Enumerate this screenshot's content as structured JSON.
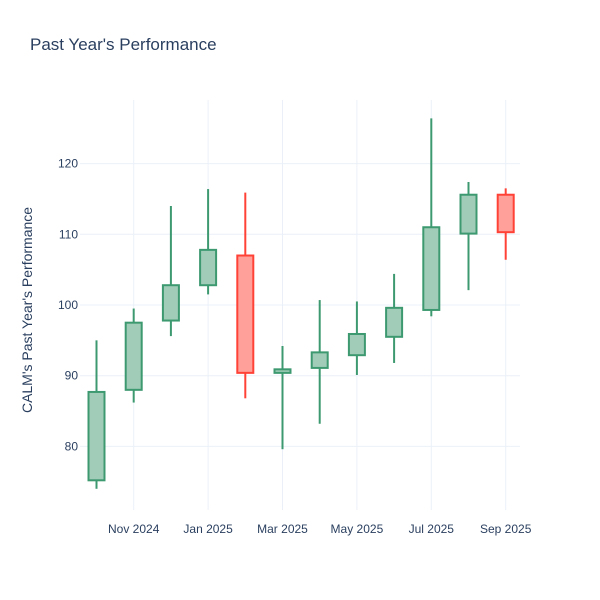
{
  "chart_data": {
    "type": "candlestick",
    "title": "Past Year's Performance",
    "xlabel": "",
    "ylabel": "CALM's Past Year's Performance",
    "ylim": [
      71,
      129
    ],
    "x_ticks": [
      "Nov 2024",
      "Jan 2025",
      "Mar 2025",
      "May 2025",
      "Jul 2025",
      "Sep 2025"
    ],
    "y_ticks": [
      80,
      90,
      100,
      110,
      120
    ],
    "colors": {
      "increasing": "#3d9970",
      "increasing_fill": "#a1ccb8",
      "decreasing": "#ff4136",
      "decreasing_fill": "#ffa09b",
      "grid": "#ebf0f8",
      "text": "#2a3f5f"
    },
    "candles": [
      {
        "period": "Oct 2024",
        "open": 75.2,
        "high": 95.0,
        "low": 74.0,
        "close": 87.7
      },
      {
        "period": "Nov 2024",
        "open": 88.0,
        "high": 99.5,
        "low": 86.2,
        "close": 97.5
      },
      {
        "period": "Dec 2024",
        "open": 97.8,
        "high": 114.0,
        "low": 95.6,
        "close": 102.8
      },
      {
        "period": "Jan 2025",
        "open": 102.8,
        "high": 116.4,
        "low": 101.5,
        "close": 107.8
      },
      {
        "period": "Feb 2025",
        "open": 107.0,
        "high": 115.9,
        "low": 86.8,
        "close": 90.4
      },
      {
        "period": "Mar 2025",
        "open": 90.4,
        "high": 94.2,
        "low": 79.6,
        "close": 90.9
      },
      {
        "period": "Apr 2025",
        "open": 91.1,
        "high": 100.7,
        "low": 83.2,
        "close": 93.3
      },
      {
        "period": "May 2025",
        "open": 92.9,
        "high": 100.5,
        "low": 90.1,
        "close": 95.9
      },
      {
        "period": "Jun 2025",
        "open": 95.5,
        "high": 104.4,
        "low": 91.8,
        "close": 99.6
      },
      {
        "period": "Jul 2025",
        "open": 99.3,
        "high": 126.4,
        "low": 98.4,
        "close": 111.0
      },
      {
        "period": "Aug 2025",
        "open": 110.1,
        "high": 117.4,
        "low": 102.1,
        "close": 115.6
      },
      {
        "period": "Sep 2025",
        "open": 115.6,
        "high": 116.5,
        "low": 106.4,
        "close": 110.3
      }
    ]
  }
}
